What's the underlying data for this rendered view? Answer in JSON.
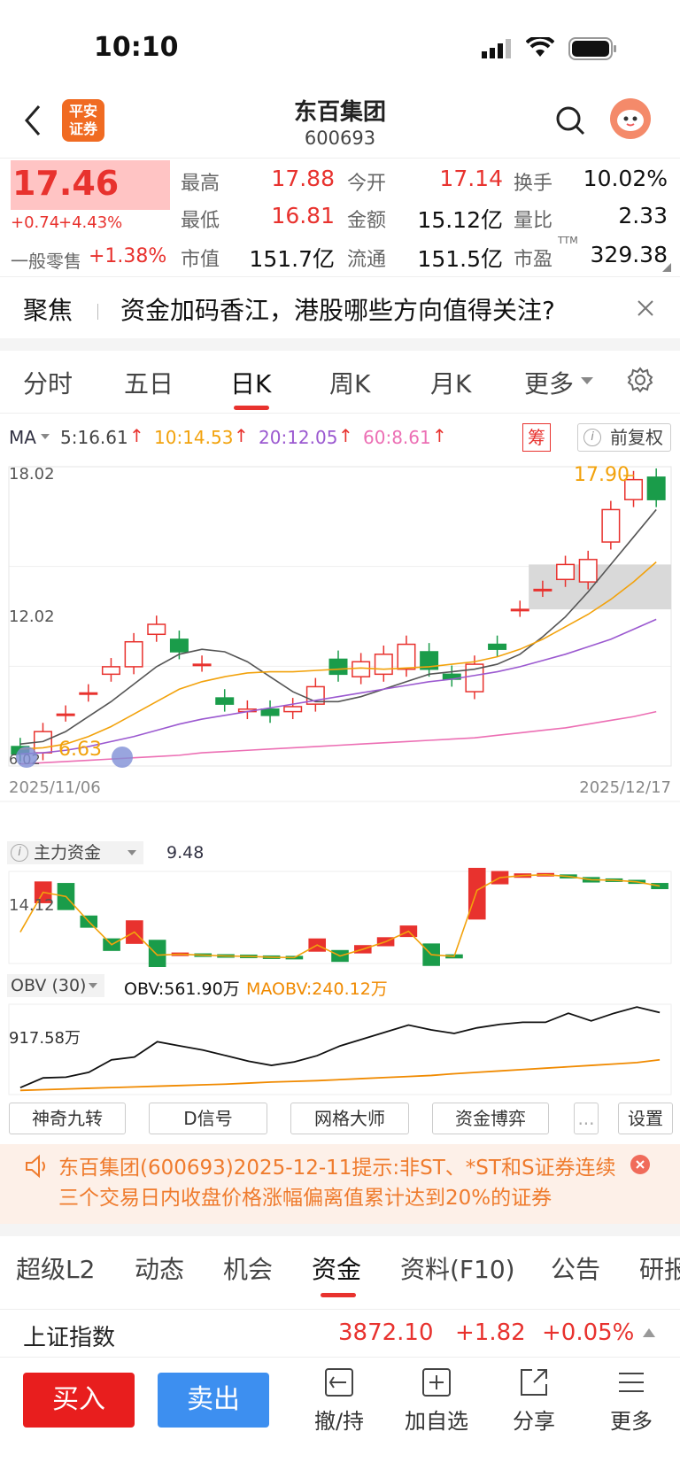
{
  "status": {
    "time": "10:10"
  },
  "header": {
    "broker_logo": "平安\n证券",
    "title": "东百集团",
    "code": "600693"
  },
  "quote": {
    "price": "17.46",
    "change": "+0.74",
    "change_pct": "+4.43%",
    "sector_label": "一般零售",
    "sector_change": "+1.38%",
    "stats": [
      {
        "label": "最高",
        "value": "17.88"
      },
      {
        "label": "今开",
        "value": "17.14"
      },
      {
        "label": "换手",
        "value": "10.02%"
      },
      {
        "label": "最低",
        "value": "16.81"
      },
      {
        "label": "金额",
        "value": "15.12亿"
      },
      {
        "label": "量比",
        "value": "2.33"
      },
      {
        "label": "市值",
        "value": "151.7亿"
      },
      {
        "label": "流通",
        "value": "151.5亿"
      },
      {
        "label": "市盈",
        "value": "329.38"
      }
    ],
    "pe_sup": "TTM"
  },
  "focus": {
    "label": "聚焦",
    "text": "资金加码香江，港股哪些方向值得关注?"
  },
  "chart_tabs": [
    "分时",
    "五日",
    "日K",
    "周K",
    "月K",
    "更多"
  ],
  "active_tab": "日K",
  "ma_legend": {
    "label": "MA",
    "items": [
      {
        "text": "5:16.61",
        "color": "#444444"
      },
      {
        "text": "10:14.53",
        "color": "#f2a20c"
      },
      {
        "text": "20:12.05",
        "color": "#9b59d0"
      },
      {
        "text": "60:8.61",
        "color": "#ec6fb4"
      }
    ],
    "chip_label": "筹",
    "adjust_label": "前复权"
  },
  "kline": {
    "y_top_label": "18.02",
    "y_mid_label": "12.02",
    "y_bottom_label": "6.02",
    "high_mark": "17.90",
    "low_mark": "6.63",
    "date_start": "2025/11/06",
    "date_end": "2025/12/17"
  },
  "chart_data": [
    {
      "type": "candlestick",
      "title": "日K",
      "x": [
        "2025/11/06",
        "2025/12/17"
      ],
      "ylim": [
        6.02,
        18.02
      ],
      "candles": [
        {
          "o": 6.8,
          "c": 6.5
        },
        {
          "o": 6.55,
          "c": 7.4
        },
        {
          "o": 8.1,
          "c": 8.1
        },
        {
          "o": 8.9,
          "c": 8.95
        },
        {
          "o": 9.7,
          "c": 10.0
        },
        {
          "o": 10.0,
          "c": 11.0
        },
        {
          "o": 11.3,
          "c": 11.7
        },
        {
          "o": 11.1,
          "c": 10.6
        },
        {
          "o": 10.1,
          "c": 10.1
        },
        {
          "o": 8.75,
          "c": 8.5
        },
        {
          "o": 8.2,
          "c": 8.3
        },
        {
          "o": 8.3,
          "c": 8.05
        },
        {
          "o": 8.2,
          "c": 8.4
        },
        {
          "o": 8.5,
          "c": 9.2
        },
        {
          "o": 10.3,
          "c": 9.7
        },
        {
          "o": 9.6,
          "c": 10.2
        },
        {
          "o": 9.7,
          "c": 10.5
        },
        {
          "o": 9.9,
          "c": 10.9
        },
        {
          "o": 10.6,
          "c": 9.9
        },
        {
          "o": 9.7,
          "c": 9.5
        },
        {
          "o": 9.0,
          "c": 10.1
        },
        {
          "o": 10.9,
          "c": 10.7
        },
        {
          "o": 12.3,
          "c": 12.3
        },
        {
          "o": 13.1,
          "c": 13.1
        },
        {
          "o": 13.5,
          "c": 14.1
        },
        {
          "o": 13.4,
          "c": 14.3
        },
        {
          "o": 15.0,
          "c": 16.3
        },
        {
          "o": 16.7,
          "c": 17.5
        },
        {
          "o": 17.6,
          "c": 16.7
        }
      ],
      "ma5": [
        6.9,
        7.0,
        7.4,
        8.0,
        8.6,
        9.3,
        10.0,
        10.5,
        10.7,
        10.6,
        10.2,
        9.6,
        9.0,
        8.6,
        8.6,
        8.8,
        9.1,
        9.4,
        9.7,
        9.8,
        9.9,
        10.1,
        10.5,
        11.2,
        12.0,
        13.0,
        14.1,
        15.2,
        16.3
      ],
      "ma10": [
        6.7,
        6.75,
        6.9,
        7.2,
        7.6,
        8.1,
        8.6,
        9.1,
        9.4,
        9.6,
        9.75,
        9.8,
        9.8,
        9.85,
        9.9,
        9.95,
        9.9,
        9.95,
        10.0,
        10.1,
        10.2,
        10.4,
        10.7,
        11.1,
        11.6,
        12.1,
        12.7,
        13.4,
        14.2
      ],
      "ma20": [
        6.5,
        6.55,
        6.65,
        6.8,
        7.0,
        7.2,
        7.45,
        7.7,
        7.9,
        8.05,
        8.2,
        8.35,
        8.5,
        8.65,
        8.8,
        8.95,
        9.1,
        9.25,
        9.4,
        9.5,
        9.65,
        9.8,
        10.0,
        10.25,
        10.5,
        10.8,
        11.1,
        11.5,
        11.9
      ],
      "ma60": [
        6.1,
        6.15,
        6.2,
        6.25,
        6.3,
        6.35,
        6.4,
        6.45,
        6.55,
        6.6,
        6.65,
        6.7,
        6.75,
        6.8,
        6.85,
        6.9,
        6.95,
        7.0,
        7.05,
        7.1,
        7.15,
        7.25,
        7.35,
        7.45,
        7.55,
        7.7,
        7.85,
        8.0,
        8.2
      ]
    },
    {
      "type": "bar",
      "title": "主力资金",
      "value_label": "9.48",
      "y_label": "14.12",
      "series": [
        {
          "values": [
            0,
            5.4,
            -1.5,
            -4.2,
            -7.0,
            -1.1,
            -9.0,
            -8.8,
            -9.0,
            -9.2,
            -9.3,
            -9.5,
            -9.6,
            -6.6,
            -9.2,
            -7.6,
            -5.8,
            -3.3,
            -8.9,
            -9.3,
            6.5,
            9.5,
            10.0,
            10.2,
            9.8,
            9.0,
            8.9,
            8.5,
            7.5
          ]
        }
      ],
      "line": [
        -3.5,
        6.0,
        5.0,
        -1.0,
        -6.5,
        -3.5,
        -9.0,
        -8.8,
        -9.0,
        -9.2,
        -9.3,
        -9.5,
        -9.6,
        -6.6,
        -9.2,
        -7.6,
        -5.8,
        -3.3,
        -8.9,
        -9.3,
        6.5,
        9.5,
        10.0,
        10.2,
        9.8,
        9.0,
        8.9,
        8.5,
        7.5
      ]
    },
    {
      "type": "line",
      "title": "OBV (30)",
      "y_label": "917.58万",
      "series": [
        {
          "name": "OBV:561.90万",
          "values": [
            100,
            240,
            250,
            320,
            500,
            540,
            760,
            700,
            640,
            560,
            480,
            420,
            470,
            560,
            700,
            800,
            900,
            1000,
            930,
            880,
            960,
            1010,
            1040,
            1040,
            1170,
            1060,
            1170,
            1260,
            1180
          ]
        },
        {
          "name": "MAOBV:240.12万",
          "values": [
            60,
            70,
            80,
            90,
            100,
            110,
            120,
            130,
            140,
            150,
            165,
            180,
            190,
            200,
            215,
            230,
            245,
            260,
            275,
            300,
            320,
            340,
            360,
            380,
            400,
            420,
            440,
            460,
            500
          ]
        }
      ]
    }
  ],
  "indicator_tools": [
    "神奇九转",
    "D信号",
    "网格大师",
    "资金博弈",
    "..."
  ],
  "settings_label": "设置",
  "notice": {
    "text": "东百集团(600693)2025-12-11提示:非ST、*ST和S证券连续三个交易日内收盘价格涨幅偏离值累计达到20%的证券"
  },
  "section_tabs": [
    "超级L2",
    "动态",
    "机会",
    "资金",
    "资料(F10)",
    "公告",
    "研报"
  ],
  "active_section": "资金",
  "index_bar": {
    "name": "上证指数",
    "value": "3872.10",
    "change": "+1.82",
    "change_pct": "+0.05%"
  },
  "bottom": {
    "buy": "买入",
    "sell": "卖出",
    "items": [
      "撤/持",
      "加自选",
      "分享",
      "更多"
    ]
  },
  "colors": {
    "up": "#e8322e",
    "down": "#1a9c4a",
    "accent": "#e8322e",
    "sell_blue": "#3d8ff0",
    "notice_bg": "#fdf0e8",
    "notice_text": "#ef7b2d"
  }
}
